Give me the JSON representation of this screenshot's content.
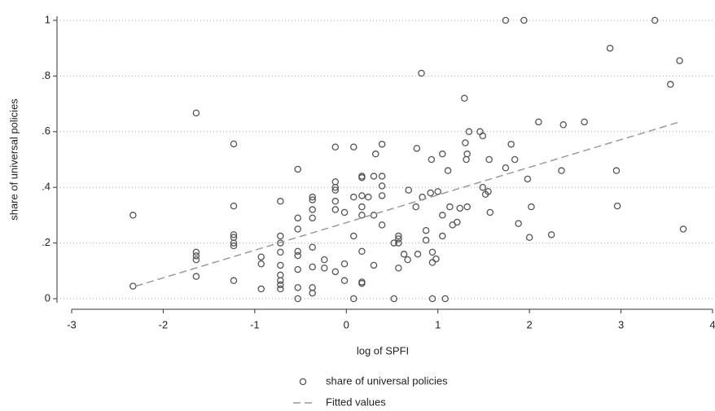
{
  "chart_data": {
    "type": "scatter",
    "x_label": "log of SPFI",
    "y_label": "share of universal policies",
    "xlim": [
      -3,
      4
    ],
    "xticks": [
      -3,
      -2,
      -1,
      0,
      1,
      2,
      3,
      4
    ],
    "ylim": [
      0,
      1
    ],
    "yticks": [
      0,
      {
        "value": 0.2,
        "label": ".2"
      },
      {
        "value": 0.4,
        "label": ".4"
      },
      {
        "value": 0.6,
        "label": ".6"
      },
      {
        "value": 0.8,
        "label": ".8"
      },
      1
    ],
    "grid": true,
    "legend": "bottom",
    "series": [
      {
        "name": "share of universal policies",
        "type": "scatter",
        "color": "#555555",
        "x": [
          -2.33,
          -2.33,
          -1.64,
          -1.64,
          -1.64,
          -1.64,
          -1.64,
          -1.23,
          -1.23,
          -1.23,
          -1.23,
          -1.23,
          -1.23,
          -1.23,
          -0.93,
          -0.93,
          -0.93,
          -0.72,
          -0.72,
          -0.72,
          -0.72,
          -0.72,
          -0.72,
          -0.72,
          -0.72,
          -0.72,
          -0.53,
          -0.53,
          -0.53,
          -0.53,
          -0.53,
          -0.53,
          -0.53,
          -0.53,
          -0.37,
          -0.37,
          -0.37,
          -0.37,
          -0.37,
          -0.37,
          -0.37,
          -0.37,
          -0.24,
          -0.24,
          -0.12,
          -0.12,
          -0.12,
          -0.12,
          -0.12,
          -0.12,
          -0.12,
          -0.02,
          -0.02,
          -0.02,
          0.08,
          0.08,
          0.08,
          0.08,
          0.17,
          0.17,
          0.17,
          0.17,
          0.17,
          0.17,
          0.17,
          0.17,
          0.32,
          0.3,
          0.39,
          0.39,
          0.39,
          0.39,
          0.39,
          0.3,
          0.3,
          0.24,
          0.52,
          0.52,
          0.57,
          0.57,
          0.57,
          0.57,
          0.63,
          0.67,
          0.68,
          0.76,
          0.78,
          0.77,
          0.82,
          0.83,
          0.87,
          0.87,
          0.92,
          0.93,
          0.94,
          0.94,
          0.94,
          0.98,
          1.0,
          1.05,
          1.05,
          1.05,
          1.08,
          1.11,
          1.13,
          1.16,
          1.21,
          1.24,
          1.29,
          1.3,
          1.31,
          1.32,
          1.34,
          1.32,
          1.46,
          1.49,
          1.49,
          1.52,
          1.55,
          1.56,
          1.57,
          1.74,
          1.74,
          1.8,
          1.84,
          1.88,
          1.94,
          1.98,
          2.02,
          2.0,
          2.1,
          2.35,
          2.37,
          2.24,
          2.6,
          2.88,
          2.95,
          2.96,
          3.37,
          3.54,
          3.64,
          3.68
        ],
        "values": [
          0.3,
          0.045,
          0.667,
          0.167,
          0.154,
          0.14,
          0.08,
          0.556,
          0.333,
          0.23,
          0.22,
          0.2,
          0.19,
          0.065,
          0.15,
          0.125,
          0.035,
          0.35,
          0.225,
          0.2,
          0.167,
          0.12,
          0.085,
          0.065,
          0.05,
          0.035,
          0.465,
          0.29,
          0.25,
          0.17,
          0.155,
          0.105,
          0.04,
          0,
          0.365,
          0.355,
          0.32,
          0.29,
          0.185,
          0.114,
          0.04,
          0.02,
          0.14,
          0.11,
          0.545,
          0.42,
          0.4,
          0.39,
          0.35,
          0.32,
          0.097,
          0.125,
          0.065,
          0.31,
          0.545,
          0.365,
          0.225,
          0,
          0.44,
          0.435,
          0.37,
          0.33,
          0.3,
          0.17,
          0.06,
          0.055,
          0.52,
          0.44,
          0.555,
          0.44,
          0.405,
          0.37,
          0.265,
          0.3,
          0.12,
          0.365,
          0.2,
          0,
          0.225,
          0.215,
          0.2,
          0.11,
          0.16,
          0.14,
          0.39,
          0.33,
          0.16,
          0.54,
          0.81,
          0.365,
          0.245,
          0.21,
          0.38,
          0.5,
          0,
          0.167,
          0.13,
          0.143,
          0.385,
          0.3,
          0.52,
          0.225,
          0,
          0.46,
          0.33,
          0.265,
          0.275,
          0.325,
          0.72,
          0.56,
          0.5,
          0.52,
          0.6,
          0.33,
          0.6,
          0.585,
          0.4,
          0.375,
          0.385,
          0.5,
          0.31,
          0.47,
          1,
          0.555,
          0.5,
          0.27,
          1,
          0.43,
          0.33,
          0.22,
          0.635,
          0.46,
          0.625,
          0.23,
          0.635,
          0.9,
          0.46,
          0.333,
          1,
          0.77,
          0.855,
          0.25
        ]
      },
      {
        "name": "Fitted values",
        "type": "line",
        "dash": true,
        "color": "#9a9a9a",
        "x": [
          -2.3,
          3.66
        ],
        "values": [
          0.045,
          0.637
        ]
      }
    ]
  }
}
